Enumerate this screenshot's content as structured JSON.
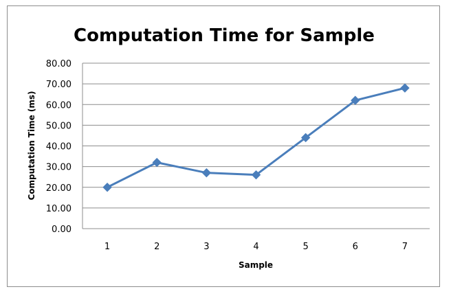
{
  "chart_data": {
    "type": "line",
    "title": "Computation Time for Sample",
    "xlabel": "Sample",
    "ylabel": "Computation Time (ms)",
    "categories": [
      "1",
      "2",
      "3",
      "4",
      "5",
      "6",
      "7"
    ],
    "series": [
      {
        "values": [
          20,
          32,
          27,
          26,
          44,
          62,
          68
        ]
      }
    ],
    "ylim": [
      0,
      80
    ],
    "yticks": [
      "0.00",
      "10.00",
      "20.00",
      "30.00",
      "40.00",
      "50.00",
      "60.00",
      "70.00",
      "80.00"
    ],
    "grid": true,
    "legend": "none",
    "marker": "diamond",
    "line_color": "#4a7ebb"
  }
}
